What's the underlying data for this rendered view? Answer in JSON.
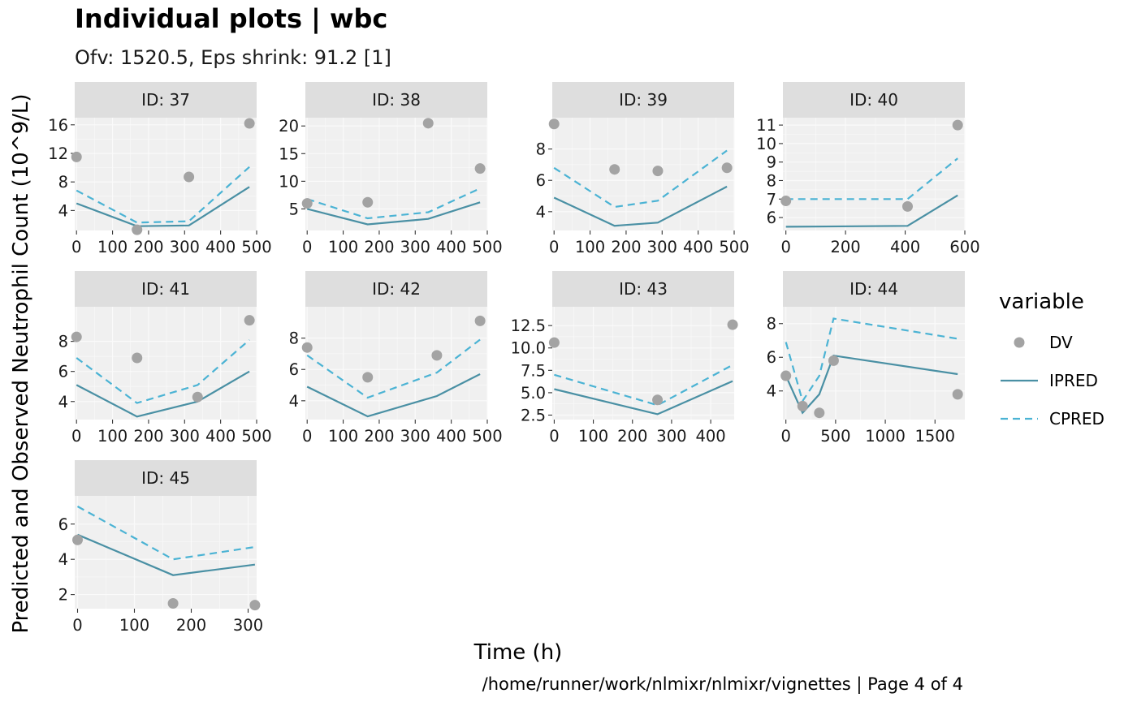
{
  "title": "Individual plots | wbc",
  "subtitle": "Ofv: 1520.5, Eps shrink: 91.2 [1]",
  "caption": "/home/runner/work/nlmixr/nlmixr/vignettes | Page 4 of 4",
  "colors": {
    "panel_bg": "#F0F0F0",
    "strip_bg": "#DEDEDE",
    "grid": "#FAFAFA",
    "dv": "#A3A3A3",
    "ipred": "#4A90A4",
    "cpred": "#4BB3D4"
  },
  "chart_data": {
    "type": "line",
    "xlabel": "Time (h)",
    "ylabel": "Predicted and Observed Neutrophil Count (10^9/L)",
    "legend": {
      "title": "variable",
      "position": "right",
      "items": [
        {
          "label": "DV",
          "kind": "point",
          "color": "#A3A3A3"
        },
        {
          "label": "IPRED",
          "kind": "solid",
          "color": "#4A90A4"
        },
        {
          "label": "CPRED",
          "kind": "dashed",
          "color": "#4BB3D4"
        }
      ]
    },
    "grid": true,
    "panels": [
      {
        "strip": "ID: 37",
        "xlim": [
          -5,
          500
        ],
        "ylim": [
          1.2,
          17.0
        ],
        "xticks": [
          0,
          100,
          200,
          300,
          400,
          500
        ],
        "xtick_labels": [
          "0",
          "100",
          "200",
          "300",
          "400",
          "500"
        ],
        "yticks": [
          4,
          8,
          12,
          16
        ],
        "ytick_labels": [
          "4",
          "8",
          "12",
          "16"
        ],
        "x": [
          0,
          168,
          312,
          480
        ],
        "DV": [
          11.5,
          1.3,
          8.7,
          16.2
        ],
        "IPRED": [
          5.0,
          1.8,
          1.9,
          7.3
        ],
        "CPRED": [
          6.8,
          2.3,
          2.5,
          10.1
        ]
      },
      {
        "strip": "ID: 38",
        "xlim": [
          -5,
          500
        ],
        "ylim": [
          1.1,
          21.5
        ],
        "xticks": [
          0,
          100,
          200,
          300,
          400,
          500
        ],
        "xtick_labels": [
          "0",
          "100",
          "200",
          "300",
          "400",
          "500"
        ],
        "yticks": [
          5,
          10,
          15,
          20
        ],
        "ytick_labels": [
          "5",
          "10",
          "15",
          "20"
        ],
        "x": [
          0,
          168,
          336,
          480
        ],
        "DV": [
          6.0,
          6.2,
          20.5,
          12.3
        ],
        "IPRED": [
          5.0,
          2.2,
          3.2,
          6.2
        ],
        "CPRED": [
          6.8,
          3.3,
          4.4,
          8.7
        ]
      },
      {
        "strip": "ID: 39",
        "xlim": [
          -5,
          500
        ],
        "ylim": [
          2.8,
          10.0
        ],
        "xticks": [
          0,
          100,
          200,
          300,
          400,
          500
        ],
        "xtick_labels": [
          "0",
          "100",
          "200",
          "300",
          "400",
          "500"
        ],
        "yticks": [
          4,
          6,
          8
        ],
        "ytick_labels": [
          "4",
          "6",
          "8"
        ],
        "x": [
          0,
          168,
          288,
          480
        ],
        "DV": [
          9.6,
          6.7,
          6.6,
          6.8
        ],
        "IPRED": [
          4.9,
          3.1,
          3.3,
          5.6
        ],
        "CPRED": [
          6.8,
          4.3,
          4.7,
          7.9
        ]
      },
      {
        "strip": "ID: 40",
        "xlim": [
          -10,
          600
        ],
        "ylim": [
          5.3,
          11.4
        ],
        "xticks": [
          0,
          200,
          400,
          600
        ],
        "xtick_labels": [
          "0",
          "200",
          "400",
          "600"
        ],
        "yticks": [
          6,
          7,
          8,
          9,
          10,
          11
        ],
        "ytick_labels": [
          "6",
          "7",
          "8",
          "9",
          "10",
          "11"
        ],
        "x": [
          0,
          408,
          576
        ],
        "DV": [
          6.9,
          6.6,
          11.0
        ],
        "IPRED": [
          5.5,
          5.55,
          7.2
        ],
        "CPRED": [
          7.0,
          7.0,
          9.2
        ]
      },
      {
        "strip": "ID: 41",
        "xlim": [
          -5,
          500
        ],
        "ylim": [
          2.8,
          10.3
        ],
        "xticks": [
          0,
          100,
          200,
          300,
          400,
          500
        ],
        "xtick_labels": [
          "0",
          "100",
          "200",
          "300",
          "400",
          "500"
        ],
        "yticks": [
          4,
          6,
          8
        ],
        "ytick_labels": [
          "4",
          "6",
          "8"
        ],
        "x": [
          0,
          168,
          336,
          480
        ],
        "DV": [
          8.3,
          6.9,
          4.3,
          9.4
        ],
        "IPRED": [
          5.1,
          3.0,
          4.0,
          6.0
        ],
        "CPRED": [
          6.9,
          3.9,
          5.1,
          8.1
        ]
      },
      {
        "strip": "ID: 42",
        "xlim": [
          -5,
          500
        ],
        "ylim": [
          2.8,
          10.0
        ],
        "xticks": [
          0,
          100,
          200,
          300,
          400,
          500
        ],
        "xtick_labels": [
          "0",
          "100",
          "200",
          "300",
          "400",
          "500"
        ],
        "yticks": [
          4,
          6,
          8
        ],
        "ytick_labels": [
          "4",
          "6",
          "8"
        ],
        "x": [
          0,
          168,
          360,
          480
        ],
        "DV": [
          7.4,
          5.5,
          6.9,
          9.1
        ],
        "IPRED": [
          4.9,
          3.0,
          4.3,
          5.7
        ],
        "CPRED": [
          6.9,
          4.2,
          5.8,
          7.9
        ]
      },
      {
        "strip": "ID: 43",
        "xlim": [
          -5,
          460
        ],
        "ylim": [
          2.0,
          14.6
        ],
        "xticks": [
          0,
          100,
          200,
          300,
          400
        ],
        "xtick_labels": [
          "0",
          "100",
          "200",
          "300",
          "400"
        ],
        "yticks": [
          2.5,
          5.0,
          7.5,
          10.0,
          12.5
        ],
        "ytick_labels": [
          "2.5",
          "5.0",
          "7.5",
          "10.0",
          "12.5"
        ],
        "x": [
          0,
          264,
          456
        ],
        "DV": [
          10.6,
          4.2,
          12.6
        ],
        "IPRED": [
          5.4,
          2.6,
          6.3
        ],
        "CPRED": [
          7.0,
          3.6,
          8.1
        ]
      },
      {
        "strip": "ID: 44",
        "xlim": [
          -30,
          1800
        ],
        "ylim": [
          2.3,
          9.0
        ],
        "xticks": [
          0,
          500,
          1000,
          1500
        ],
        "xtick_labels": [
          "0",
          "500",
          "1000",
          "1500"
        ],
        "yticks": [
          4,
          6,
          8
        ],
        "ytick_labels": [
          "4",
          "6",
          "8"
        ],
        "x": [
          0,
          168,
          336,
          480,
          1728
        ],
        "DV": [
          4.9,
          3.1,
          2.7,
          5.8,
          3.8
        ],
        "IPRED": [
          4.9,
          2.7,
          3.8,
          6.1,
          5.0
        ],
        "CPRED": [
          6.9,
          3.4,
          4.9,
          8.3,
          7.1
        ]
      },
      {
        "strip": "ID: 45",
        "xlim": [
          -5,
          315
        ],
        "ylim": [
          1.2,
          7.6
        ],
        "xticks": [
          0,
          100,
          200,
          300
        ],
        "xtick_labels": [
          "0",
          "100",
          "200",
          "300"
        ],
        "yticks": [
          2,
          4,
          6
        ],
        "ytick_labels": [
          "2",
          "4",
          "6"
        ],
        "x": [
          0,
          168,
          312
        ],
        "DV": [
          5.1,
          1.5,
          1.4
        ],
        "IPRED": [
          5.4,
          3.1,
          3.7
        ],
        "CPRED": [
          7.0,
          4.0,
          4.7
        ]
      }
    ]
  }
}
